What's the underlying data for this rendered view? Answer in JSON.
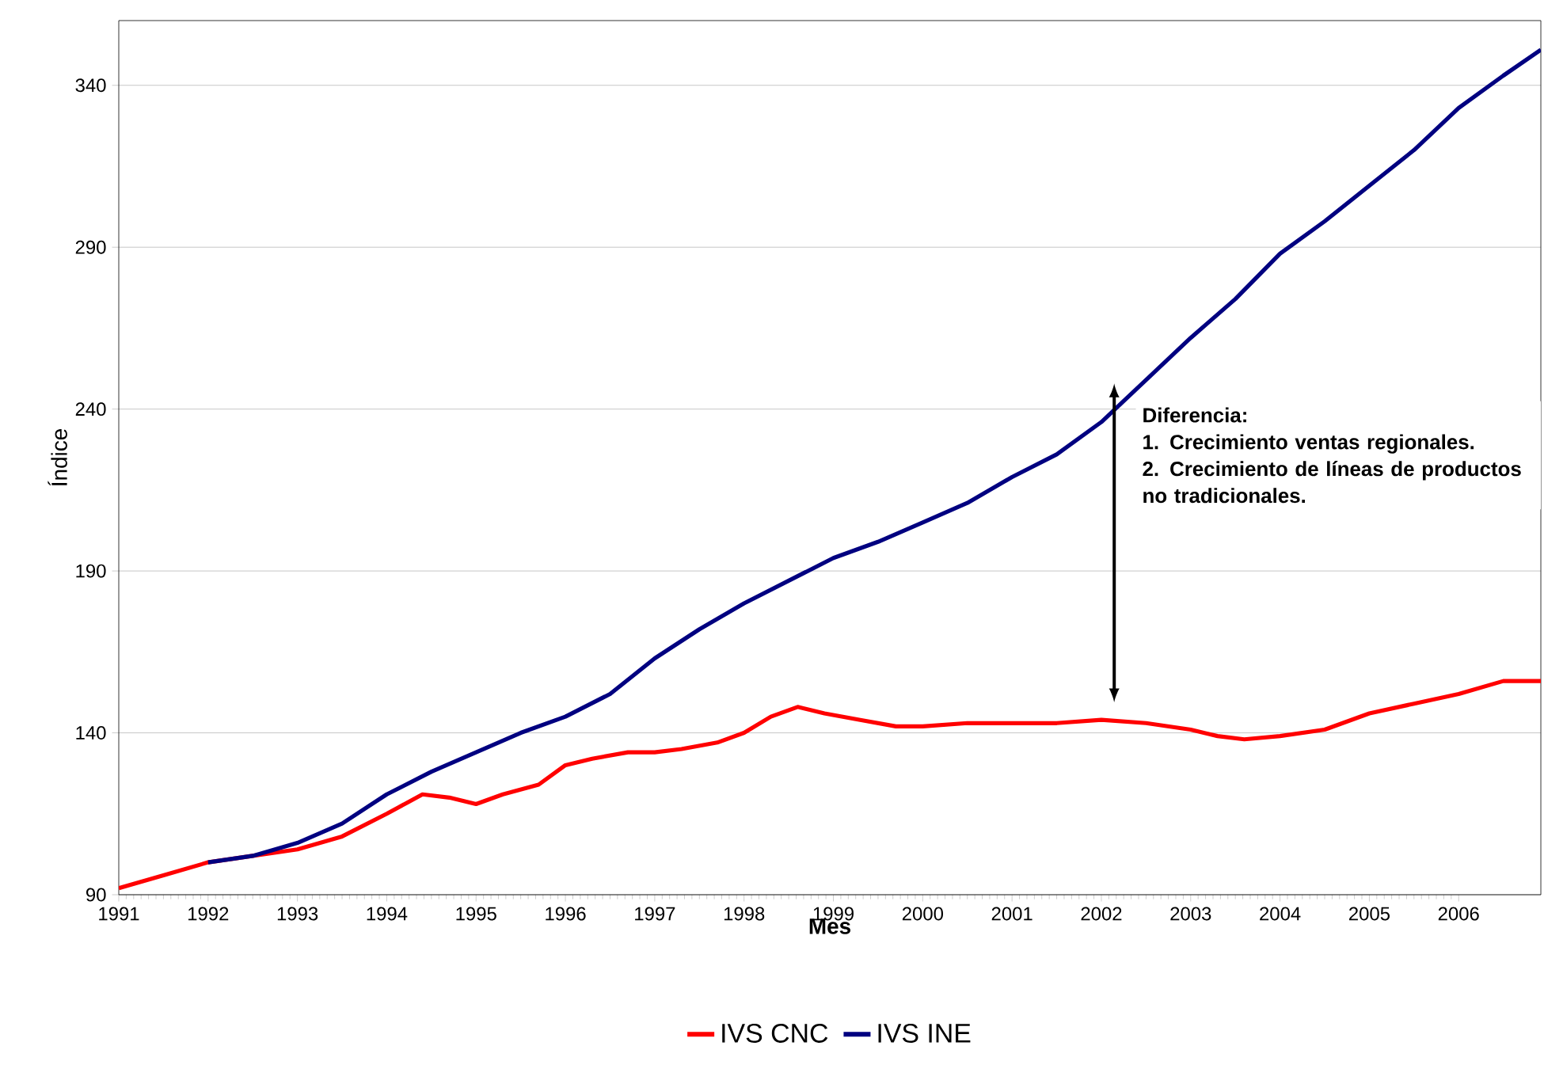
{
  "chart_data": {
    "type": "line",
    "xlabel": "Mes",
    "ylabel": "Índice",
    "xlim": [
      1991,
      2006.92
    ],
    "xticks": [
      1991,
      1992,
      1993,
      1994,
      1995,
      1996,
      1997,
      1998,
      1999,
      2000,
      2001,
      2002,
      2003,
      2004,
      2005,
      2006
    ],
    "ylim": [
      90,
      360
    ],
    "yticks": [
      90,
      140,
      190,
      240,
      290,
      340
    ],
    "grid": "y",
    "legend": "bottom",
    "marker": "none",
    "line_style": "solid",
    "series": [
      {
        "name": "IVS CNC",
        "color": "#ff0000",
        "x": [
          1991.0,
          1991.5,
          1992.0,
          1992.5,
          1993.0,
          1993.5,
          1994.0,
          1994.4,
          1994.7,
          1995.0,
          1995.3,
          1995.7,
          1996.0,
          1996.3,
          1996.7,
          1997.0,
          1997.3,
          1997.7,
          1998.0,
          1998.3,
          1998.6,
          1998.9,
          1999.3,
          1999.7,
          2000.0,
          2000.5,
          2001.0,
          2001.5,
          2002.0,
          2002.5,
          2003.0,
          2003.3,
          2003.6,
          2004.0,
          2004.5,
          2005.0,
          2005.5,
          2006.0,
          2006.5,
          2006.92
        ],
        "values": [
          92,
          96,
          100,
          102,
          104,
          108,
          115,
          121,
          120,
          118,
          121,
          124,
          130,
          132,
          134,
          134,
          135,
          137,
          140,
          145,
          148,
          146,
          144,
          142,
          142,
          143,
          143,
          143,
          144,
          143,
          141,
          139,
          138,
          139,
          141,
          146,
          149,
          152,
          156,
          156
        ]
      },
      {
        "name": "IVS INE",
        "color": "#000080",
        "x": [
          1992.0,
          1992.5,
          1993.0,
          1993.5,
          1994.0,
          1994.5,
          1995.0,
          1995.5,
          1996.0,
          1996.5,
          1997.0,
          1997.5,
          1998.0,
          1998.5,
          1999.0,
          1999.5,
          2000.0,
          2000.5,
          2001.0,
          2001.5,
          2002.0,
          2002.5,
          2003.0,
          2003.5,
          2004.0,
          2004.5,
          2005.0,
          2005.5,
          2006.0,
          2006.5,
          2006.92
        ],
        "values": [
          100,
          102,
          106,
          112,
          121,
          128,
          134,
          140,
          145,
          152,
          163,
          172,
          180,
          187,
          194,
          199,
          205,
          211,
          219,
          226,
          236,
          249,
          262,
          274,
          288,
          298,
          309,
          320,
          333,
          343,
          351
        ]
      }
    ],
    "annotations": [
      "Diferencia:\n1. Crecimiento ventas regionales.\n2. Crecimiento de líneas de productos no tradicionales."
    ]
  }
}
